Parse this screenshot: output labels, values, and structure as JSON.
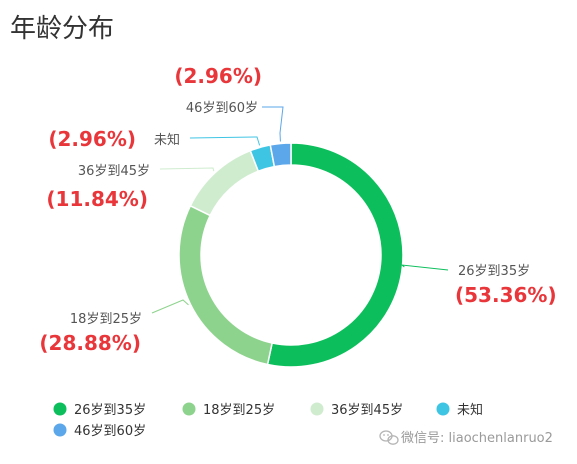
{
  "chart_data": {
    "type": "pie",
    "variant": "donut",
    "title": "年龄分布",
    "slices": [
      {
        "name": "26岁到35岁",
        "value": 53.36,
        "label": "(53.36%)",
        "color": "#0cbf5c"
      },
      {
        "name": "18岁到25岁",
        "value": 28.88,
        "label": "(28.88%)",
        "color": "#8dd38d"
      },
      {
        "name": "36岁到45岁",
        "value": 11.84,
        "label": "(11.84%)",
        "color": "#cfeccf"
      },
      {
        "name": "未知",
        "value": 2.96,
        "label": "(2.96%)",
        "color": "#3fc5e4"
      },
      {
        "name": "46岁到60岁",
        "value": 2.96,
        "label": "(2.96%)",
        "color": "#5ba7ea"
      }
    ],
    "legend_position": "bottom-left"
  },
  "watermark": {
    "text": "微信号: liaochenlanruo2",
    "icon": "wechat-icon"
  }
}
